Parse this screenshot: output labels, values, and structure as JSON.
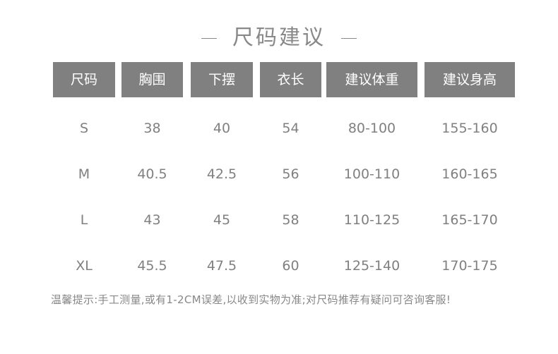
{
  "title": "尺码建议",
  "headers": [
    "尺码",
    "胸围",
    "下摆",
    "衣长",
    "建议体重",
    "建议身高"
  ],
  "rows": [
    [
      "S",
      "38",
      "40",
      "54",
      "80-100",
      "155-160"
    ],
    [
      "M",
      "40.5",
      "42.5",
      "56",
      "100-110",
      "160-165"
    ],
    [
      "L",
      "43",
      "45",
      "58",
      "110-125",
      "165-170"
    ],
    [
      "XL",
      "45.5",
      "47.5",
      "60",
      "125-140",
      "170-175"
    ]
  ],
  "note": "温馨提示:手工测量,或有1-2CM误差,以收到实物为准;对尺码推荐有疑问可咨询客服!",
  "colors": {
    "header_bg": "#808080",
    "header_text": "#ffffff",
    "body_text": "#808080"
  }
}
